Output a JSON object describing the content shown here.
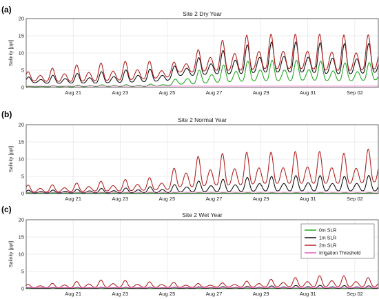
{
  "chart_data": [
    {
      "type": "line",
      "panel_label": "(a)",
      "title": "Site 2 Dry Year",
      "ylabel": "Salinity [ppt]",
      "ylim": [
        0,
        20
      ],
      "yticks": [
        0,
        5,
        10,
        15,
        20
      ],
      "x_start": "Aug 19",
      "x_end": "Sep 03",
      "xticks": [
        "Aug 21",
        "Aug 23",
        "Aug 25",
        "Aug 27",
        "Aug 29",
        "Aug 31",
        "Sep 02"
      ],
      "xtick_days": [
        2,
        4,
        6,
        8,
        10,
        12,
        14
      ],
      "grid": true,
      "series": [
        {
          "name": "0m SLR",
          "color": "#22aa22",
          "days": [
            0,
            1,
            2,
            3,
            4,
            5,
            6,
            6.5,
            7,
            8,
            9,
            10,
            11,
            12,
            13,
            14,
            15
          ],
          "min": [
            0.2,
            0.2,
            0.2,
            0.3,
            0.3,
            0.3,
            0.5,
            1.0,
            1.0,
            1.5,
            1.8,
            2.0,
            2.0,
            2.2,
            2.0,
            2.0,
            2.3
          ],
          "max": [
            0.3,
            0.5,
            0.6,
            0.8,
            0.8,
            0.9,
            1.2,
            3.0,
            4.5,
            6.0,
            7.5,
            8.0,
            8.0,
            8.0,
            7.5,
            7.0,
            7.5
          ]
        },
        {
          "name": "1m SLR",
          "color": "#111111",
          "days": [
            0,
            1,
            2,
            3,
            4,
            5,
            6,
            6.5,
            7,
            8,
            9,
            10,
            11,
            12,
            13,
            14,
            15
          ],
          "min": [
            1.5,
            1.2,
            1.3,
            1.3,
            1.5,
            1.7,
            2.0,
            3.5,
            3.5,
            4.0,
            4.0,
            4.5,
            4.5,
            4.5,
            4.0,
            4.0,
            4.5
          ],
          "max": [
            3.0,
            3.5,
            4.0,
            4.5,
            5.0,
            5.5,
            5.0,
            7.0,
            8.0,
            10.0,
            12.0,
            13.0,
            13.5,
            13.0,
            13.0,
            12.5,
            13.0
          ]
        },
        {
          "name": "2m SLR",
          "color": "#b22222",
          "days": [
            0,
            1,
            2,
            3,
            4,
            5,
            6,
            6.5,
            7,
            8,
            9,
            10,
            11,
            12,
            13,
            14,
            15
          ],
          "min": [
            2.0,
            1.8,
            1.8,
            2.0,
            2.2,
            2.5,
            3.0,
            4.5,
            4.5,
            5.0,
            5.0,
            5.5,
            5.5,
            5.5,
            5.0,
            5.0,
            5.5
          ],
          "max": [
            4.5,
            5.5,
            6.5,
            7.0,
            7.5,
            8.0,
            6.5,
            8.0,
            10.0,
            13.0,
            15.0,
            15.5,
            15.5,
            15.5,
            15.5,
            15.0,
            15.5
          ]
        },
        {
          "name": "Irrigation Threshold",
          "color": "#e060c0",
          "days": [
            0,
            15
          ],
          "min": [
            0.4,
            0.4
          ],
          "max": [
            0.4,
            0.4
          ]
        }
      ]
    },
    {
      "type": "line",
      "panel_label": "(b)",
      "title": "Site 2 Normal Year",
      "ylabel": "Salinity [ppt]",
      "ylim": [
        0,
        20
      ],
      "yticks": [
        0,
        5,
        10,
        15,
        20
      ],
      "x_start": "Aug 19",
      "x_end": "Sep 03",
      "xticks": [
        "Aug 21",
        "Aug 23",
        "Aug 25",
        "Aug 27",
        "Aug 29",
        "Aug 31",
        "Sep 02"
      ],
      "xtick_days": [
        2,
        4,
        6,
        8,
        10,
        12,
        14
      ],
      "grid": true,
      "series": [
        {
          "name": "0m SLR",
          "color": "#22aa22",
          "days": [
            0,
            15
          ],
          "min": [
            0.1,
            0.1
          ],
          "max": [
            0.2,
            0.2
          ]
        },
        {
          "name": "1m SLR",
          "color": "#111111",
          "days": [
            0,
            1,
            2,
            3,
            4,
            5,
            6,
            6.5,
            7,
            8,
            9,
            10,
            11,
            12,
            13,
            14,
            15
          ],
          "min": [
            0.2,
            0.2,
            0.2,
            0.2,
            0.2,
            0.3,
            0.3,
            0.5,
            0.5,
            0.6,
            0.6,
            0.8,
            0.8,
            0.8,
            0.8,
            0.8,
            0.8
          ],
          "max": [
            1.0,
            1.0,
            1.2,
            1.5,
            1.5,
            2.0,
            2.0,
            3.0,
            3.5,
            4.0,
            4.5,
            5.0,
            5.0,
            5.5,
            5.0,
            5.0,
            5.5
          ]
        },
        {
          "name": "2m SLR",
          "color": "#b22222",
          "days": [
            0,
            1,
            2,
            3,
            4,
            5,
            6,
            6.5,
            7,
            8,
            9,
            10,
            11,
            12,
            13,
            14,
            15
          ],
          "min": [
            0.5,
            0.5,
            0.6,
            0.8,
            0.8,
            1.0,
            1.2,
            2.0,
            2.0,
            2.5,
            2.5,
            3.0,
            3.0,
            3.0,
            3.0,
            3.0,
            3.5
          ],
          "max": [
            2.5,
            2.5,
            3.0,
            3.5,
            4.0,
            4.5,
            5.0,
            9.0,
            10.5,
            11.5,
            12.0,
            12.0,
            12.0,
            12.5,
            12.0,
            11.5,
            14.0
          ]
        },
        {
          "name": "Irrigation Threshold",
          "color": "#e060c0",
          "days": [
            0,
            15
          ],
          "min": [
            0.4,
            0.4
          ],
          "max": [
            0.4,
            0.4
          ]
        }
      ]
    },
    {
      "type": "line",
      "panel_label": "(c)",
      "title": "Site 2 Wet Year",
      "ylabel": "Salinity [ppt]",
      "ylim": [
        0,
        20
      ],
      "yticks": [
        0,
        5,
        10,
        15,
        20
      ],
      "x_start": "Aug 19",
      "x_end": "Sep 03",
      "xticks": [
        "Aug 21",
        "Aug 23",
        "Aug 25",
        "Aug 27",
        "Aug 29",
        "Aug 31",
        "Sep 02"
      ],
      "xtick_days": [
        2,
        4,
        6,
        8,
        10,
        12,
        14
      ],
      "grid": true,
      "legend_position": "top-right",
      "series": [
        {
          "name": "0m SLR",
          "color": "#22aa22",
          "days": [
            0,
            15
          ],
          "min": [
            0.1,
            0.1
          ],
          "max": [
            0.1,
            0.1
          ]
        },
        {
          "name": "1m SLR",
          "color": "#111111",
          "days": [
            0,
            3,
            6,
            9,
            12,
            15
          ],
          "min": [
            0.1,
            0.1,
            0.1,
            0.1,
            0.1,
            0.1
          ],
          "max": [
            0.3,
            0.4,
            0.4,
            0.6,
            1.0,
            0.8
          ]
        },
        {
          "name": "2m SLR",
          "color": "#b22222",
          "days": [
            0,
            1,
            2,
            3,
            4,
            5,
            6,
            7,
            8,
            9,
            10,
            11,
            12,
            13,
            14,
            15
          ],
          "min": [
            0.3,
            0.3,
            0.3,
            0.4,
            0.4,
            0.4,
            0.4,
            0.4,
            0.5,
            0.5,
            0.5,
            0.6,
            0.6,
            0.6,
            0.6,
            0.6
          ],
          "max": [
            1.2,
            1.5,
            2.0,
            2.5,
            2.5,
            2.0,
            2.0,
            1.5,
            1.5,
            2.0,
            2.5,
            3.0,
            3.5,
            4.0,
            3.5,
            3.0
          ]
        },
        {
          "name": "Irrigation Threshold",
          "color": "#e060c0",
          "days": [
            0,
            15
          ],
          "min": [
            0.3,
            0.3
          ],
          "max": [
            0.3,
            0.3
          ]
        }
      ]
    }
  ]
}
